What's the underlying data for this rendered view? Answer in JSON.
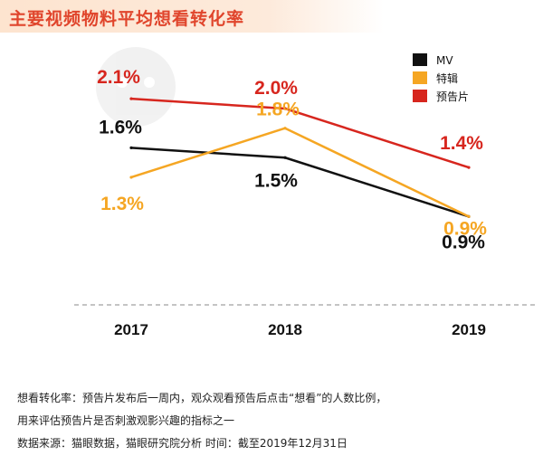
{
  "header": {
    "title": "主要视频物料平均想看转化率"
  },
  "chart_data": {
    "type": "line",
    "title": "主要视频物料平均想看转化率",
    "categories": [
      "2017",
      "2018",
      "2019"
    ],
    "series": [
      {
        "name": "MV",
        "color": "#111111",
        "values": [
          1.6,
          1.5,
          0.9
        ],
        "labels": [
          "1.6%",
          "1.5%",
          "0.9%"
        ]
      },
      {
        "name": "特辑",
        "color": "#f5a623",
        "values": [
          1.3,
          1.8,
          0.9
        ],
        "labels": [
          "1.3%",
          "1.8%",
          "0.9%"
        ]
      },
      {
        "name": "预告片",
        "color": "#d7261e",
        "values": [
          2.1,
          2.0,
          1.4
        ],
        "labels": [
          "2.1%",
          "2.0%",
          "1.4%"
        ]
      }
    ],
    "legend_position": "top-right",
    "grid": false,
    "yaxis_visible": false,
    "baseline_style": "dashed"
  },
  "notes": {
    "definition_line1": "想看转化率：预告片发布后一周内，观众观看预告后点击“想看”的人数比例，",
    "definition_line2": "用来评估预告片是否刺激观影兴趣的指标之一",
    "source": "数据来源：猫眼数据，猫眼研究院分析    时间：截至2019年12月31日"
  }
}
